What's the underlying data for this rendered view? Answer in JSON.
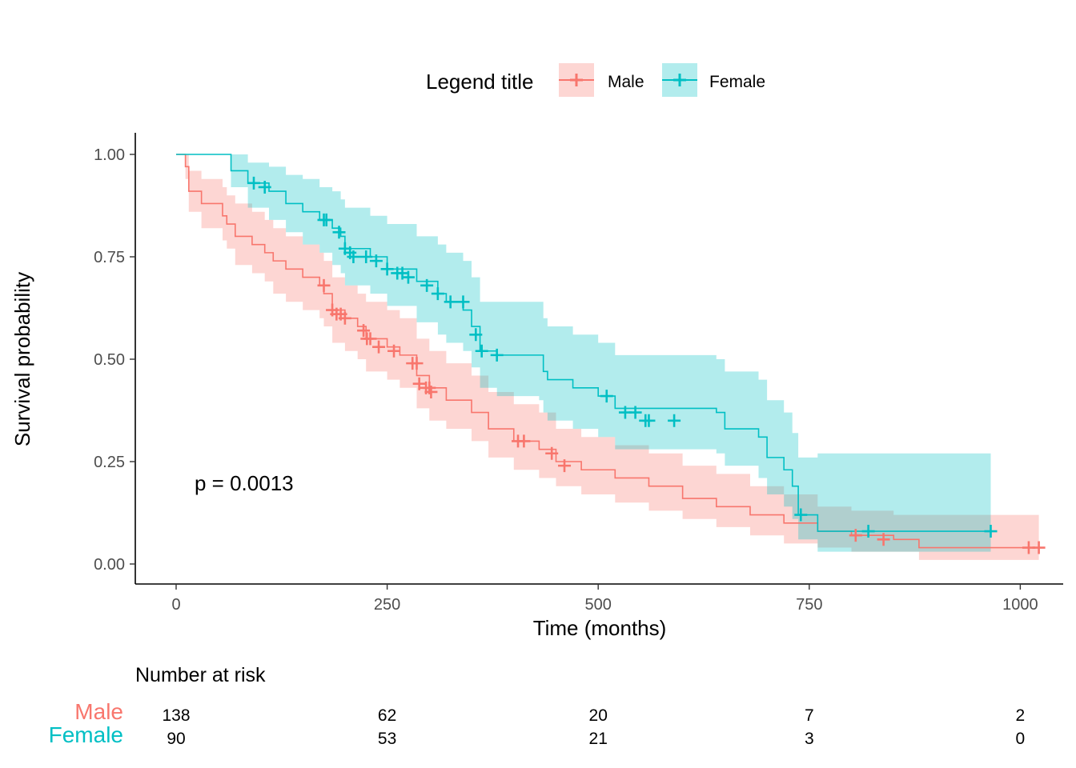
{
  "chart_data": {
    "type": "line",
    "subtype": "kaplan-meier",
    "xlabel": "Time (months)",
    "ylabel": "Survival probability",
    "xlim": [
      0,
      1050
    ],
    "ylim": [
      0,
      1
    ],
    "xticks": [
      0,
      250,
      500,
      750,
      1000
    ],
    "yticks": [
      0,
      0.25,
      0.5,
      0.75,
      1.0
    ],
    "ytick_labels": [
      "0.00",
      "0.25",
      "0.50",
      "0.75",
      "1.00"
    ],
    "grid": false,
    "confidence_bands": true,
    "censor_marks": true,
    "legend": {
      "title": "Legend title",
      "position": "top"
    },
    "annotation": "p = 0.0013",
    "series": [
      {
        "name": "Male",
        "color": "#F8766D",
        "steps": [
          [
            0,
            1.0
          ],
          [
            11,
            0.97
          ],
          [
            15,
            0.91
          ],
          [
            30,
            0.88
          ],
          [
            55,
            0.85
          ],
          [
            60,
            0.83
          ],
          [
            70,
            0.8
          ],
          [
            90,
            0.78
          ],
          [
            105,
            0.76
          ],
          [
            115,
            0.74
          ],
          [
            130,
            0.72
          ],
          [
            150,
            0.7
          ],
          [
            170,
            0.68
          ],
          [
            175,
            0.66
          ],
          [
            185,
            0.62
          ],
          [
            200,
            0.6
          ],
          [
            215,
            0.58
          ],
          [
            225,
            0.55
          ],
          [
            250,
            0.53
          ],
          [
            265,
            0.51
          ],
          [
            285,
            0.46
          ],
          [
            300,
            0.43
          ],
          [
            320,
            0.4
          ],
          [
            350,
            0.37
          ],
          [
            370,
            0.33
          ],
          [
            400,
            0.3
          ],
          [
            430,
            0.28
          ],
          [
            450,
            0.25
          ],
          [
            480,
            0.23
          ],
          [
            520,
            0.21
          ],
          [
            560,
            0.19
          ],
          [
            600,
            0.16
          ],
          [
            640,
            0.14
          ],
          [
            680,
            0.12
          ],
          [
            720,
            0.1
          ],
          [
            760,
            0.08
          ],
          [
            800,
            0.07
          ],
          [
            850,
            0.06
          ],
          [
            880,
            0.04
          ],
          [
            1022,
            0.04
          ]
        ],
        "ci_upper": [
          [
            0,
            1.0
          ],
          [
            11,
            1.0
          ],
          [
            15,
            0.96
          ],
          [
            30,
            0.94
          ],
          [
            55,
            0.92
          ],
          [
            60,
            0.9
          ],
          [
            70,
            0.88
          ],
          [
            90,
            0.86
          ],
          [
            105,
            0.84
          ],
          [
            115,
            0.82
          ],
          [
            130,
            0.8
          ],
          [
            150,
            0.78
          ],
          [
            170,
            0.76
          ],
          [
            175,
            0.74
          ],
          [
            185,
            0.7
          ],
          [
            200,
            0.68
          ],
          [
            215,
            0.66
          ],
          [
            225,
            0.64
          ],
          [
            250,
            0.62
          ],
          [
            265,
            0.6
          ],
          [
            285,
            0.55
          ],
          [
            300,
            0.52
          ],
          [
            320,
            0.49
          ],
          [
            350,
            0.46
          ],
          [
            370,
            0.42
          ],
          [
            400,
            0.39
          ],
          [
            430,
            0.37
          ],
          [
            450,
            0.33
          ],
          [
            480,
            0.31
          ],
          [
            520,
            0.29
          ],
          [
            560,
            0.27
          ],
          [
            600,
            0.24
          ],
          [
            640,
            0.22
          ],
          [
            680,
            0.19
          ],
          [
            720,
            0.17
          ],
          [
            760,
            0.14
          ],
          [
            800,
            0.13
          ],
          [
            850,
            0.12
          ],
          [
            880,
            0.12
          ],
          [
            1022,
            0.12
          ]
        ],
        "ci_lower": [
          [
            0,
            1.0
          ],
          [
            11,
            0.94
          ],
          [
            15,
            0.86
          ],
          [
            30,
            0.82
          ],
          [
            55,
            0.79
          ],
          [
            60,
            0.77
          ],
          [
            70,
            0.73
          ],
          [
            90,
            0.71
          ],
          [
            105,
            0.69
          ],
          [
            115,
            0.66
          ],
          [
            130,
            0.64
          ],
          [
            150,
            0.62
          ],
          [
            170,
            0.6
          ],
          [
            175,
            0.58
          ],
          [
            185,
            0.54
          ],
          [
            200,
            0.52
          ],
          [
            215,
            0.5
          ],
          [
            225,
            0.47
          ],
          [
            250,
            0.45
          ],
          [
            265,
            0.43
          ],
          [
            285,
            0.38
          ],
          [
            300,
            0.35
          ],
          [
            320,
            0.33
          ],
          [
            350,
            0.3
          ],
          [
            370,
            0.26
          ],
          [
            400,
            0.23
          ],
          [
            430,
            0.21
          ],
          [
            450,
            0.19
          ],
          [
            480,
            0.17
          ],
          [
            520,
            0.15
          ],
          [
            560,
            0.13
          ],
          [
            600,
            0.11
          ],
          [
            640,
            0.09
          ],
          [
            680,
            0.07
          ],
          [
            720,
            0.05
          ],
          [
            760,
            0.04
          ],
          [
            800,
            0.03
          ],
          [
            850,
            0.03
          ],
          [
            880,
            0.01
          ],
          [
            1022,
            0.01
          ]
        ],
        "censored": [
          [
            175,
            0.68
          ],
          [
            185,
            0.62
          ],
          [
            190,
            0.61
          ],
          [
            195,
            0.61
          ],
          [
            200,
            0.6
          ],
          [
            222,
            0.57
          ],
          [
            226,
            0.55
          ],
          [
            230,
            0.55
          ],
          [
            240,
            0.53
          ],
          [
            258,
            0.52
          ],
          [
            280,
            0.49
          ],
          [
            285,
            0.49
          ],
          [
            288,
            0.44
          ],
          [
            296,
            0.43
          ],
          [
            300,
            0.43
          ],
          [
            302,
            0.42
          ],
          [
            405,
            0.3
          ],
          [
            412,
            0.3
          ],
          [
            445,
            0.27
          ],
          [
            460,
            0.24
          ],
          [
            805,
            0.07
          ],
          [
            838,
            0.06
          ],
          [
            1010,
            0.04
          ],
          [
            1022,
            0.04
          ]
        ]
      },
      {
        "name": "Female",
        "color": "#00BFC4",
        "steps": [
          [
            0,
            1.0
          ],
          [
            60,
            1.0
          ],
          [
            65,
            0.96
          ],
          [
            85,
            0.93
          ],
          [
            110,
            0.91
          ],
          [
            130,
            0.88
          ],
          [
            150,
            0.86
          ],
          [
            170,
            0.84
          ],
          [
            185,
            0.82
          ],
          [
            195,
            0.8
          ],
          [
            200,
            0.77
          ],
          [
            230,
            0.75
          ],
          [
            250,
            0.72
          ],
          [
            285,
            0.69
          ],
          [
            310,
            0.66
          ],
          [
            320,
            0.64
          ],
          [
            340,
            0.62
          ],
          [
            350,
            0.58
          ],
          [
            360,
            0.52
          ],
          [
            380,
            0.51
          ],
          [
            430,
            0.51
          ],
          [
            435,
            0.47
          ],
          [
            440,
            0.45
          ],
          [
            470,
            0.43
          ],
          [
            500,
            0.41
          ],
          [
            520,
            0.38
          ],
          [
            640,
            0.37
          ],
          [
            650,
            0.33
          ],
          [
            690,
            0.31
          ],
          [
            700,
            0.26
          ],
          [
            720,
            0.23
          ],
          [
            730,
            0.19
          ],
          [
            737,
            0.12
          ],
          [
            760,
            0.08
          ],
          [
            965,
            0.08
          ]
        ],
        "ci_upper": [
          [
            0,
            1.0
          ],
          [
            60,
            1.0
          ],
          [
            65,
            1.0
          ],
          [
            85,
            0.98
          ],
          [
            110,
            0.97
          ],
          [
            130,
            0.95
          ],
          [
            150,
            0.94
          ],
          [
            170,
            0.92
          ],
          [
            185,
            0.91
          ],
          [
            195,
            0.89
          ],
          [
            200,
            0.87
          ],
          [
            230,
            0.85
          ],
          [
            250,
            0.83
          ],
          [
            285,
            0.8
          ],
          [
            310,
            0.78
          ],
          [
            320,
            0.76
          ],
          [
            340,
            0.74
          ],
          [
            350,
            0.7
          ],
          [
            360,
            0.64
          ],
          [
            380,
            0.64
          ],
          [
            430,
            0.64
          ],
          [
            435,
            0.6
          ],
          [
            440,
            0.58
          ],
          [
            470,
            0.56
          ],
          [
            500,
            0.54
          ],
          [
            520,
            0.51
          ],
          [
            640,
            0.5
          ],
          [
            650,
            0.47
          ],
          [
            690,
            0.45
          ],
          [
            700,
            0.4
          ],
          [
            720,
            0.37
          ],
          [
            730,
            0.32
          ],
          [
            737,
            0.26
          ],
          [
            760,
            0.27
          ],
          [
            965,
            0.27
          ]
        ],
        "ci_lower": [
          [
            0,
            1.0
          ],
          [
            60,
            1.0
          ],
          [
            65,
            0.92
          ],
          [
            85,
            0.87
          ],
          [
            110,
            0.84
          ],
          [
            130,
            0.81
          ],
          [
            150,
            0.78
          ],
          [
            170,
            0.76
          ],
          [
            185,
            0.73
          ],
          [
            195,
            0.71
          ],
          [
            200,
            0.68
          ],
          [
            230,
            0.66
          ],
          [
            250,
            0.63
          ],
          [
            285,
            0.59
          ],
          [
            310,
            0.56
          ],
          [
            320,
            0.54
          ],
          [
            340,
            0.52
          ],
          [
            350,
            0.48
          ],
          [
            360,
            0.43
          ],
          [
            380,
            0.41
          ],
          [
            430,
            0.4
          ],
          [
            435,
            0.37
          ],
          [
            440,
            0.35
          ],
          [
            470,
            0.33
          ],
          [
            500,
            0.31
          ],
          [
            520,
            0.28
          ],
          [
            640,
            0.27
          ],
          [
            650,
            0.24
          ],
          [
            690,
            0.21
          ],
          [
            700,
            0.17
          ],
          [
            720,
            0.14
          ],
          [
            730,
            0.11
          ],
          [
            737,
            0.06
          ],
          [
            760,
            0.03
          ],
          [
            965,
            0.03
          ]
        ],
        "censored": [
          [
            92,
            0.93
          ],
          [
            105,
            0.92
          ],
          [
            175,
            0.84
          ],
          [
            178,
            0.84
          ],
          [
            193,
            0.81
          ],
          [
            200,
            0.77
          ],
          [
            206,
            0.76
          ],
          [
            210,
            0.75
          ],
          [
            225,
            0.75
          ],
          [
            237,
            0.74
          ],
          [
            250,
            0.72
          ],
          [
            262,
            0.71
          ],
          [
            268,
            0.71
          ],
          [
            275,
            0.7
          ],
          [
            297,
            0.68
          ],
          [
            310,
            0.66
          ],
          [
            325,
            0.64
          ],
          [
            340,
            0.64
          ],
          [
            355,
            0.56
          ],
          [
            362,
            0.52
          ],
          [
            380,
            0.51
          ],
          [
            510,
            0.41
          ],
          [
            532,
            0.37
          ],
          [
            544,
            0.37
          ],
          [
            556,
            0.35
          ],
          [
            560,
            0.35
          ],
          [
            590,
            0.35
          ],
          [
            740,
            0.12
          ],
          [
            820,
            0.08
          ],
          [
            965,
            0.08
          ]
        ]
      }
    ],
    "risk_table": {
      "title": "Number at risk",
      "times": [
        0,
        250,
        500,
        750,
        1000
      ],
      "rows": [
        {
          "name": "Male",
          "color": "#F8766D",
          "counts": [
            "138",
            "62",
            "20",
            "7",
            "2"
          ]
        },
        {
          "name": "Female",
          "color": "#00BFC4",
          "counts": [
            "90",
            "53",
            "21",
            "3",
            "0"
          ]
        }
      ]
    }
  }
}
